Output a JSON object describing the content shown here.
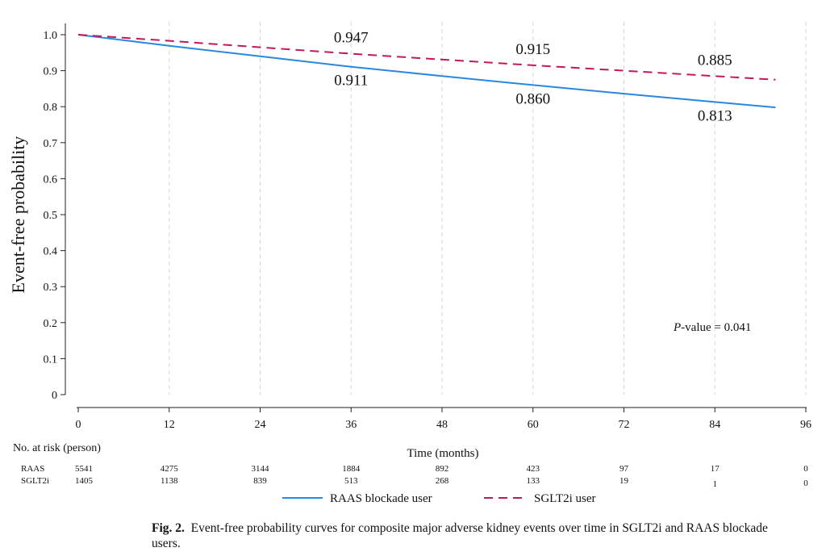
{
  "chart_data": {
    "type": "line",
    "ylabel": "Event-free probability",
    "xlabel": "Time (months)",
    "ylim": [
      0,
      1.0
    ],
    "xlim": [
      0,
      96
    ],
    "y_ticks": [
      "0",
      "0.1",
      "0.2",
      "0.3",
      "0.4",
      "0.5",
      "0.6",
      "0.7",
      "0.8",
      "0.9",
      "1.0"
    ],
    "x_ticks": [
      "0",
      "12",
      "24",
      "36",
      "48",
      "60",
      "72",
      "84",
      "96"
    ],
    "series": [
      {
        "name": "RAAS blockade user",
        "color": "#2a86e0",
        "style": "solid",
        "x": [
          0,
          12,
          24,
          36,
          48,
          60,
          72,
          84,
          92
        ],
        "y": [
          1.0,
          0.969,
          0.94,
          0.911,
          0.885,
          0.86,
          0.836,
          0.813,
          0.798
        ]
      },
      {
        "name": "SGLT2i user",
        "color": "#c2185b",
        "style": "dashed",
        "x": [
          0,
          12,
          24,
          36,
          48,
          60,
          72,
          84,
          92
        ],
        "y": [
          1.0,
          0.983,
          0.965,
          0.947,
          0.931,
          0.915,
          0.9,
          0.885,
          0.875
        ]
      }
    ],
    "annotations": [
      {
        "text": "0.947",
        "series": "SGLT2i user",
        "x": 36
      },
      {
        "text": "0.911",
        "series": "RAAS blockade user",
        "x": 36
      },
      {
        "text": "0.915",
        "series": "SGLT2i user",
        "x": 60
      },
      {
        "text": "0.860",
        "series": "RAAS blockade user",
        "x": 60
      },
      {
        "text": "0.885",
        "series": "SGLT2i user",
        "x": 84
      },
      {
        "text": "0.813",
        "series": "RAAS blockade user",
        "x": 84
      }
    ],
    "p_value_prefix": "P",
    "p_value_suffix": "-value = 0.041",
    "risk_table": {
      "header": "No. at risk (person)",
      "rows": [
        {
          "label": "RAAS",
          "values": [
            "5541",
            "4275",
            "3144",
            "1884",
            "892",
            "423",
            "97",
            "17",
            "0"
          ]
        },
        {
          "label": "SGLT2i",
          "values": [
            "1405",
            "1138",
            "839",
            "513",
            "268",
            "133",
            "19",
            "1",
            "0"
          ]
        }
      ]
    },
    "legend": {
      "placement": "bottom",
      "entries": [
        "RAAS blockade user",
        "SGLT2i user"
      ]
    }
  },
  "caption": {
    "label": "Fig. 2.",
    "text": "Event-free probability curves for composite major adverse kidney events over time in SGLT2i and RAAS blockade users."
  }
}
